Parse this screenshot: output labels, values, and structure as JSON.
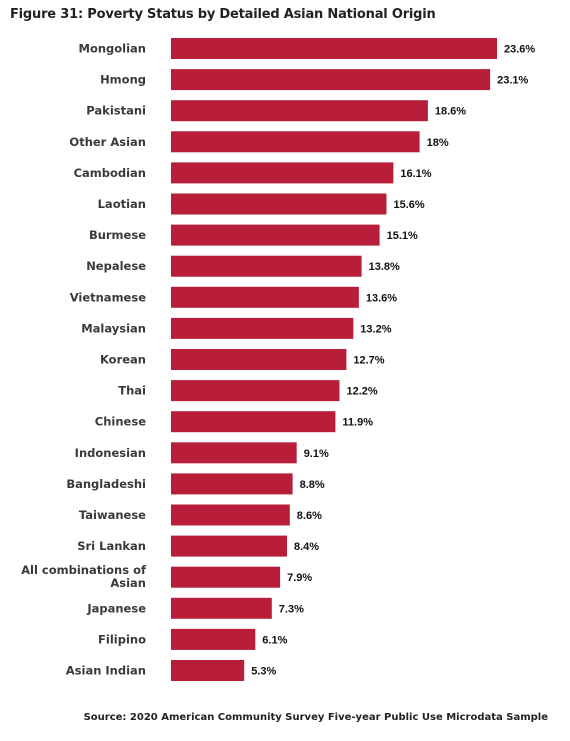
{
  "title": "Figure 31: Poverty Status by Detailed Asian National Origin",
  "source": "Source: 2020 American Community Survey Five-year Public Use Microdata Sample",
  "colors": {
    "bar": "#b81d3a"
  },
  "chart_data": {
    "type": "bar",
    "orientation": "horizontal",
    "title": "Figure 31: Poverty Status by Detailed Asian National Origin",
    "xlabel": "",
    "ylabel": "",
    "grid": false,
    "legend": "none",
    "xlim": [
      0,
      23.6
    ],
    "categories": [
      "Mongolian",
      "Hmong",
      "Pakistani",
      "Other Asian",
      "Cambodian",
      "Laotian",
      "Burmese",
      "Nepalese",
      "Vietnamese",
      "Malaysian",
      "Korean",
      "Thai",
      "Chinese",
      "Indonesian",
      "Bangladeshi",
      "Taiwanese",
      "Sri Lankan",
      "All combinations of Asian",
      "Japanese",
      "Filipino",
      "Asian Indian"
    ],
    "values": [
      23.6,
      23.1,
      18.6,
      18.0,
      16.1,
      15.6,
      15.1,
      13.8,
      13.6,
      13.2,
      12.7,
      12.2,
      11.9,
      9.1,
      8.8,
      8.6,
      8.4,
      7.9,
      7.3,
      6.1,
      5.3
    ],
    "value_labels": [
      "23.6%",
      "23.1%",
      "18.6%",
      "18%",
      "16.1%",
      "15.6%",
      "15.1%",
      "13.8%",
      "13.6%",
      "13.2%",
      "12.7%",
      "12.2%",
      "11.9%",
      "9.1%",
      "8.8%",
      "8.6%",
      "8.4%",
      "7.9%",
      "7.3%",
      "6.1%",
      "5.3%"
    ]
  }
}
